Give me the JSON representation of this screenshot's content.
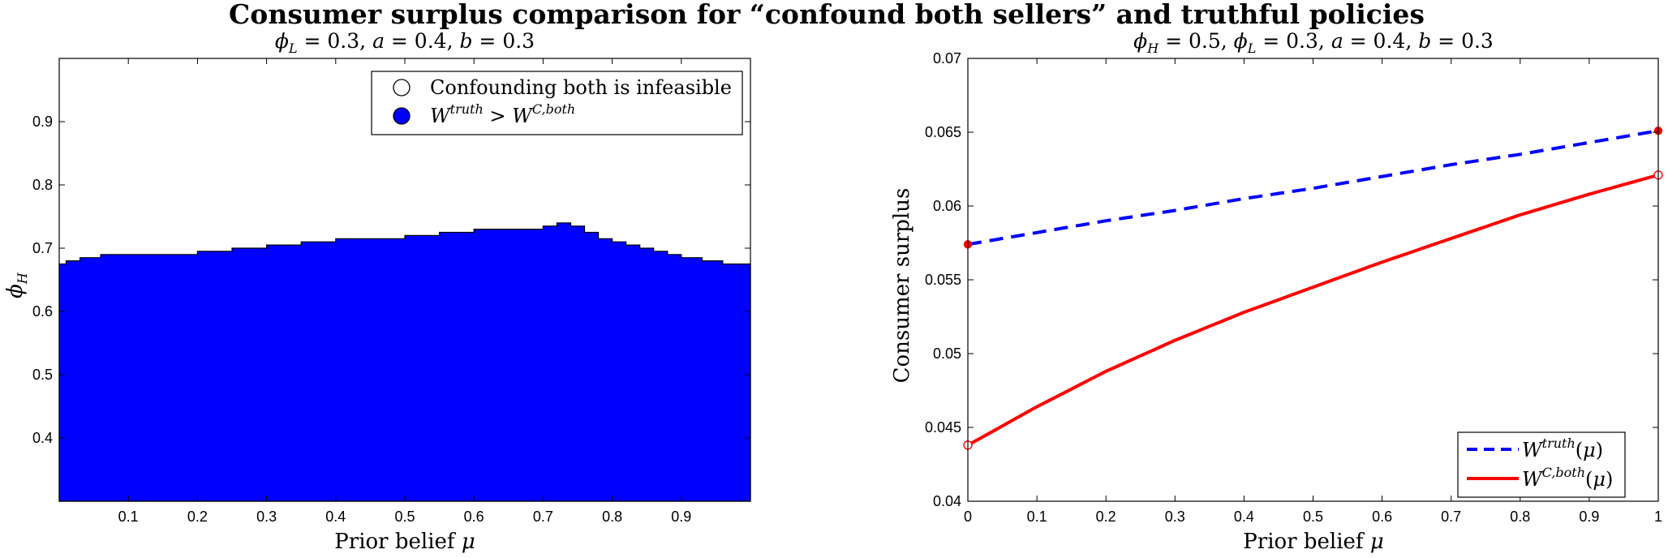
{
  "figure": {
    "suptitle": "Consumer surplus comparison for “confound both sellers” and truthful policies"
  },
  "chart_data": [
    {
      "type": "area",
      "title": "ϕ_L = 0.3, a = 0.4, b = 0.3",
      "xlabel": "Prior belief μ",
      "ylabel": "ϕ_H",
      "xlim": [
        0,
        1
      ],
      "ylim": [
        0.3,
        1.0
      ],
      "xticks": [
        "0.1",
        "0.2",
        "0.3",
        "0.4",
        "0.5",
        "0.6",
        "0.7",
        "0.8",
        "0.9"
      ],
      "yticks": [
        "0.4",
        "0.5",
        "0.6",
        "0.7",
        "0.8",
        "0.9"
      ],
      "grid": false,
      "legend_position": "top-right",
      "legend": [
        {
          "marker": "open-circle",
          "label": "Confounding both is infeasible"
        },
        {
          "marker": "filled-circle",
          "label": "W^{truth} > W^{C,both}"
        }
      ],
      "series": [
        {
          "name": "W^{truth} > W^{C,both}",
          "color": "#0000ff",
          "x": [
            0,
            0.01,
            0.03,
            0.06,
            0.1,
            0.15,
            0.2,
            0.25,
            0.3,
            0.35,
            0.4,
            0.45,
            0.5,
            0.55,
            0.6,
            0.65,
            0.7,
            0.72,
            0.74,
            0.76,
            0.78,
            0.8,
            0.82,
            0.84,
            0.86,
            0.88,
            0.9,
            0.93,
            0.96,
            1.0
          ],
          "values": [
            0.675,
            0.68,
            0.685,
            0.69,
            0.69,
            0.69,
            0.695,
            0.7,
            0.705,
            0.71,
            0.715,
            0.715,
            0.72,
            0.725,
            0.73,
            0.73,
            0.735,
            0.74,
            0.735,
            0.725,
            0.715,
            0.71,
            0.705,
            0.7,
            0.695,
            0.69,
            0.685,
            0.68,
            0.675,
            0.675
          ]
        }
      ]
    },
    {
      "type": "line",
      "title": "ϕ_H = 0.5, ϕ_L = 0.3, a = 0.4, b = 0.3",
      "xlabel": "Prior belief μ",
      "ylabel": "Consumer surplus",
      "xlim": [
        0,
        1
      ],
      "ylim": [
        0.04,
        0.07
      ],
      "xticks": [
        "0",
        "0.1",
        "0.2",
        "0.3",
        "0.4",
        "0.5",
        "0.6",
        "0.7",
        "0.8",
        "0.9",
        "1"
      ],
      "yticks": [
        "0.04",
        "0.045",
        "0.05",
        "0.055",
        "0.06",
        "0.065",
        "0.07"
      ],
      "grid": false,
      "legend_position": "bottom-right",
      "series": [
        {
          "name": "W^{truth}(μ)",
          "style": "dashed",
          "color": "#0000ff",
          "x": [
            0,
            0.1,
            0.2,
            0.3,
            0.4,
            0.5,
            0.6,
            0.7,
            0.8,
            0.9,
            1.0
          ],
          "values": [
            0.0574,
            0.0582,
            0.059,
            0.0597,
            0.0605,
            0.0612,
            0.062,
            0.0628,
            0.0635,
            0.0643,
            0.0651
          ]
        },
        {
          "name": "W^{C,both}(μ)",
          "style": "solid",
          "color": "#ff0000",
          "x": [
            0,
            0.1,
            0.2,
            0.3,
            0.4,
            0.5,
            0.6,
            0.7,
            0.8,
            0.9,
            1.0
          ],
          "values": [
            0.0438,
            0.0464,
            0.0488,
            0.0509,
            0.0528,
            0.0545,
            0.0562,
            0.0578,
            0.0594,
            0.0608,
            0.0621
          ]
        }
      ],
      "endpoint_markers": [
        {
          "x": 0,
          "y": 0.0574,
          "style": "filled",
          "color": "#ff0000"
        },
        {
          "x": 1,
          "y": 0.0651,
          "style": "filled",
          "color": "#ff0000"
        },
        {
          "x": 0,
          "y": 0.0438,
          "style": "open",
          "color": "#ff0000"
        },
        {
          "x": 1,
          "y": 0.0621,
          "style": "open",
          "color": "#ff0000"
        }
      ]
    }
  ]
}
